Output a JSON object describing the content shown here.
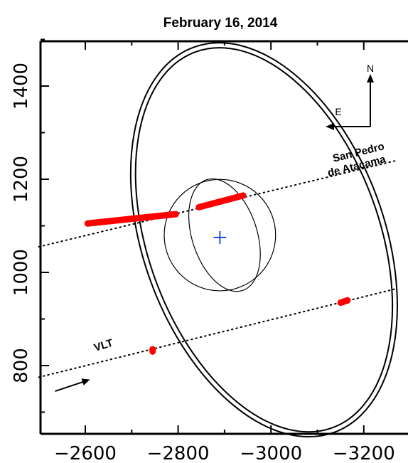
{
  "chart_data": {
    "type": "diagram",
    "title": "February 16, 2014",
    "x_ticks": [
      -2600,
      -2800,
      -3000,
      -3200
    ],
    "y_ticks": [
      800,
      1000,
      1200,
      1400
    ],
    "xlim": [
      -2500,
      -3270
    ],
    "ylim": [
      650,
      1480
    ],
    "orientation": {
      "north_label": "N",
      "east_label": "E"
    },
    "outer_ellipse": {
      "center": [
        -2985,
        1070
      ],
      "rx": 260,
      "ry": 440,
      "rotation_deg": -20
    },
    "inner_circle": {
      "center": [
        -2890,
        1080
      ],
      "radius": 120
    },
    "inner_crescent_edge": {
      "center": [
        -2900,
        1080
      ],
      "rx": 70,
      "ry": 125
    },
    "body_center": [
      -2890,
      1075
    ],
    "chords": [
      {
        "label": "San Pedro de Atacama",
        "line_start": [
          -2500,
          1055
        ],
        "line_end": [
          -3270,
          1240
        ],
        "segments": [
          [
            [
              -2605,
              1105
            ],
            [
              -2795,
              1125
            ]
          ],
          [
            [
              -2845,
              1140
            ],
            [
              -2940,
              1165
            ]
          ]
        ]
      },
      {
        "label": "VLT",
        "line_start": [
          -2500,
          775
        ],
        "line_end": [
          -3270,
          965
        ],
        "segments": [
          [
            [
              -2745,
              830
            ],
            [
              -2745,
              835
            ]
          ],
          [
            [
              -3150,
              935
            ],
            [
              -3165,
              940
            ]
          ]
        ]
      }
    ],
    "motion_arrow": {
      "from": [
        -2535,
        745
      ],
      "to": [
        -2610,
        770
      ]
    },
    "text": {
      "chord_label_top_line1": "San Pedro",
      "chord_label_top_line2": "de Atacama",
      "chord_label_bottom": "VLT"
    }
  }
}
